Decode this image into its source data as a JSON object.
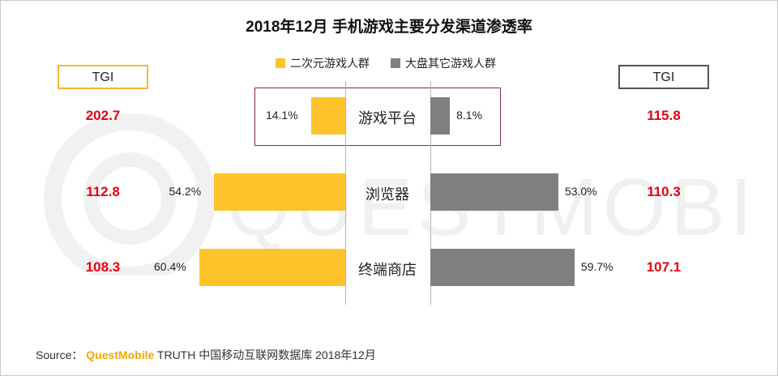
{
  "title": "2018年12月 手机游戏主要分发渠道渗透率",
  "colors": {
    "left": "#fcc32b",
    "right": "#7f7f7f",
    "tgi": "#e60012",
    "highlight": "#8e2a3c"
  },
  "legend": {
    "left": "二次元游戏人群",
    "right": "大盘其它游戏人群"
  },
  "tgi_label": "TGI",
  "watermark": "QUESTMOBILE",
  "source": {
    "prefix": "Source：",
    "brand": "QuestMobile",
    "rest": "TRUTH 中国移动互联网数据库 2018年12月"
  },
  "chart_data": {
    "type": "bar",
    "orientation": "horizontal-butterfly",
    "title": "2018年12月 手机游戏主要分发渠道渗透率",
    "categories": [
      "游戏平台",
      "浏览器",
      "终端商店"
    ],
    "series": [
      {
        "name": "二次元游戏人群",
        "values": [
          14.1,
          54.2,
          60.4
        ],
        "labels": [
          "14.1%",
          "54.2%",
          "60.4%"
        ],
        "tgi": [
          "202.7",
          "112.8",
          "108.3"
        ]
      },
      {
        "name": "大盘其它游戏人群",
        "values": [
          8.1,
          53.0,
          59.7
        ],
        "labels": [
          "8.1%",
          "53.0%",
          "59.7%"
        ],
        "tgi": [
          "115.8",
          "110.3",
          "107.1"
        ]
      }
    ],
    "highlighted_category": "游戏平台",
    "unit": "%"
  }
}
